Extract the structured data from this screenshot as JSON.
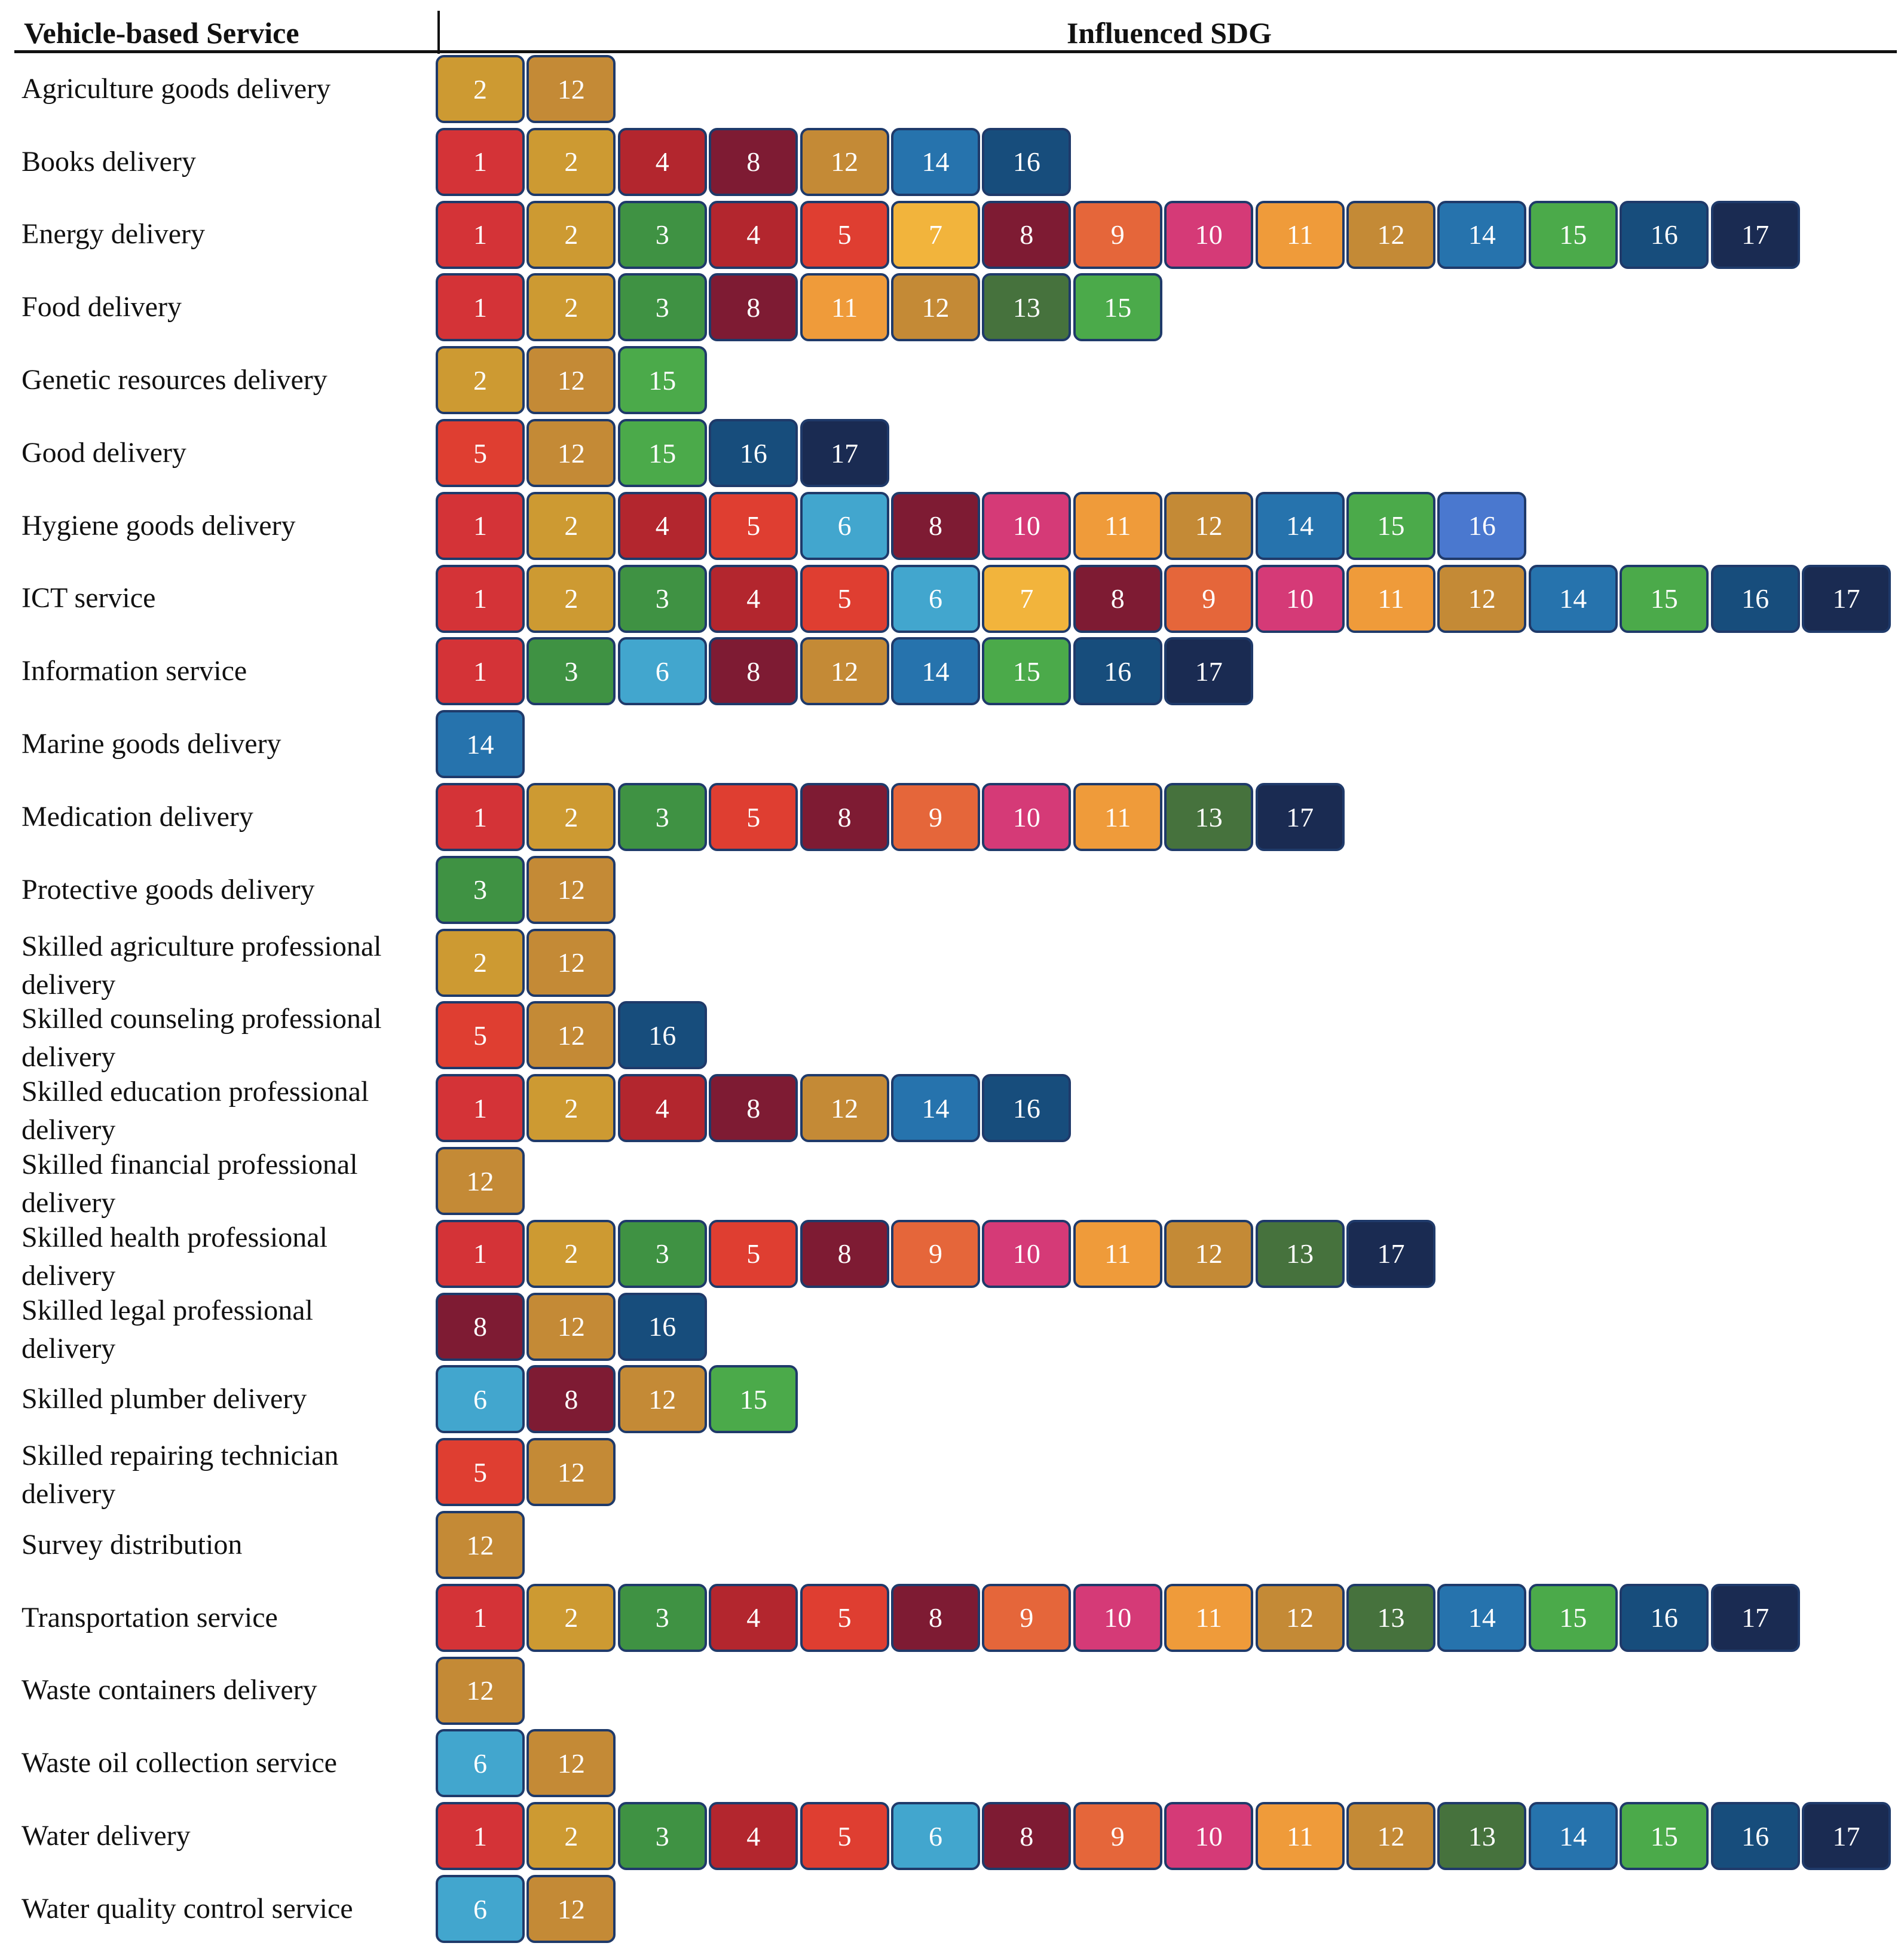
{
  "header": {
    "service_label": "Vehicle-based Service",
    "sdg_label": "Influenced SDG"
  },
  "sdg_colors": {
    "1": "#d43337",
    "2": "#cd9a32",
    "3": "#3f9243",
    "4": "#b3262e",
    "5": "#df3e31",
    "6": "#42a6ce",
    "7": "#f2b43c",
    "8": "#7e1b33",
    "9": "#e5663a",
    "10": "#d53a77",
    "11": "#ef9b3a",
    "12": "#c48a36",
    "13": "#46723d",
    "14": "#2673ad",
    "15": "#4baa4a",
    "16": "#174d7c",
    "17": "#1a2b52",
    "16_alt": "#4a78cf"
  },
  "rows": [
    {
      "service": "Agriculture goods delivery",
      "sdgs": [
        "2",
        "12"
      ]
    },
    {
      "service": "Books delivery",
      "sdgs": [
        "1",
        "2",
        "4",
        "8",
        "12",
        "14",
        "16"
      ]
    },
    {
      "service": "Energy delivery",
      "sdgs": [
        "1",
        "2",
        "3",
        "4",
        "5",
        "7",
        "8",
        "9",
        "10",
        "11",
        "12",
        "14",
        "15",
        "16",
        "17"
      ]
    },
    {
      "service": "Food delivery",
      "sdgs": [
        "1",
        "2",
        "3",
        "8",
        "11",
        "12",
        "13",
        "15"
      ]
    },
    {
      "service": "Genetic resources delivery",
      "sdgs": [
        "2",
        "12",
        "15"
      ]
    },
    {
      "service": "Good delivery",
      "sdgs": [
        "5",
        "12",
        "15",
        "16",
        "17"
      ]
    },
    {
      "service": "Hygiene goods delivery",
      "sdgs": [
        "1",
        "2",
        "4",
        "5",
        "6",
        "8",
        "10",
        "11",
        "12",
        "14",
        "15",
        "16"
      ],
      "alt_last": true
    },
    {
      "service": "ICT service",
      "sdgs": [
        "1",
        "2",
        "3",
        "4",
        "5",
        "6",
        "7",
        "8",
        "9",
        "10",
        "11",
        "12",
        "14",
        "15",
        "16",
        "17"
      ]
    },
    {
      "service": "Information service",
      "sdgs": [
        "1",
        "3",
        "6",
        "8",
        "12",
        "14",
        "15",
        "16",
        "17"
      ]
    },
    {
      "service": "Marine goods delivery",
      "sdgs": [
        "14"
      ]
    },
    {
      "service": "Medication delivery",
      "sdgs": [
        "1",
        "2",
        "3",
        "5",
        "8",
        "9",
        "10",
        "11",
        "13",
        "17"
      ]
    },
    {
      "service": "Protective goods delivery",
      "sdgs": [
        "3",
        "12"
      ]
    },
    {
      "service": "Skilled agriculture professional delivery",
      "sdgs": [
        "2",
        "12"
      ]
    },
    {
      "service": "Skilled counseling professional delivery",
      "sdgs": [
        "5",
        "12",
        "16"
      ]
    },
    {
      "service": "Skilled education professional delivery",
      "sdgs": [
        "1",
        "2",
        "4",
        "8",
        "12",
        "14",
        "16"
      ]
    },
    {
      "service": "Skilled financial professional delivery",
      "sdgs": [
        "12"
      ]
    },
    {
      "service": "Skilled health professional delivery",
      "sdgs": [
        "1",
        "2",
        "3",
        "5",
        "8",
        "9",
        "10",
        "11",
        "12",
        "13",
        "17"
      ]
    },
    {
      "service": "Skilled legal professional delivery",
      "sdgs": [
        "8",
        "12",
        "16"
      ]
    },
    {
      "service": "Skilled plumber delivery",
      "sdgs": [
        "6",
        "8",
        "12",
        "15"
      ]
    },
    {
      "service": "Skilled repairing technician delivery",
      "sdgs": [
        "5",
        "12"
      ]
    },
    {
      "service": "Survey distribution",
      "sdgs": [
        "12"
      ]
    },
    {
      "service": "Transportation service",
      "sdgs": [
        "1",
        "2",
        "3",
        "4",
        "5",
        "8",
        "9",
        "10",
        "11",
        "12",
        "13",
        "14",
        "15",
        "16",
        "17"
      ]
    },
    {
      "service": "Waste containers delivery",
      "sdgs": [
        "12"
      ]
    },
    {
      "service": "Waste oil collection service",
      "sdgs": [
        "6",
        "12"
      ]
    },
    {
      "service": "Water delivery",
      "sdgs": [
        "1",
        "2",
        "3",
        "4",
        "5",
        "6",
        "8",
        "9",
        "10",
        "11",
        "12",
        "13",
        "14",
        "15",
        "16",
        "17"
      ]
    },
    {
      "service": "Water quality control service",
      "sdgs": [
        "6",
        "12"
      ]
    }
  ]
}
